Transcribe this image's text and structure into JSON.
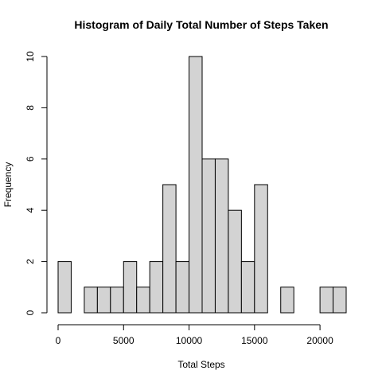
{
  "chart_data": {
    "type": "bar",
    "subtype": "histogram",
    "title": "Histogram of Daily Total Number of Steps Taken",
    "xlabel": "Total Steps",
    "ylabel": "Frequency",
    "bin_width": 1000,
    "x": [
      0,
      1000,
      2000,
      3000,
      4000,
      5000,
      6000,
      7000,
      8000,
      9000,
      10000,
      11000,
      12000,
      13000,
      14000,
      15000,
      16000,
      17000,
      18000,
      19000,
      20000,
      21000
    ],
    "values": [
      2,
      0,
      1,
      1,
      1,
      2,
      1,
      2,
      5,
      2,
      10,
      6,
      6,
      4,
      2,
      5,
      0,
      1,
      0,
      0,
      1,
      1
    ],
    "xlim": [
      0,
      22000
    ],
    "ylim": [
      0,
      10
    ],
    "x_ticks": [
      0,
      5000,
      10000,
      15000,
      20000
    ],
    "x_tick_labels": [
      "0",
      "5000",
      "10000",
      "15000",
      "20000"
    ],
    "y_ticks": [
      0,
      2,
      4,
      6,
      8,
      10
    ],
    "y_tick_labels": [
      "0",
      "2",
      "4",
      "6",
      "8",
      "10"
    ],
    "grid": false,
    "legend": "none",
    "colors": {
      "bar_fill": "#d3d3d3",
      "bar_stroke": "#000000",
      "axis": "#000000",
      "background": "#ffffff"
    }
  }
}
